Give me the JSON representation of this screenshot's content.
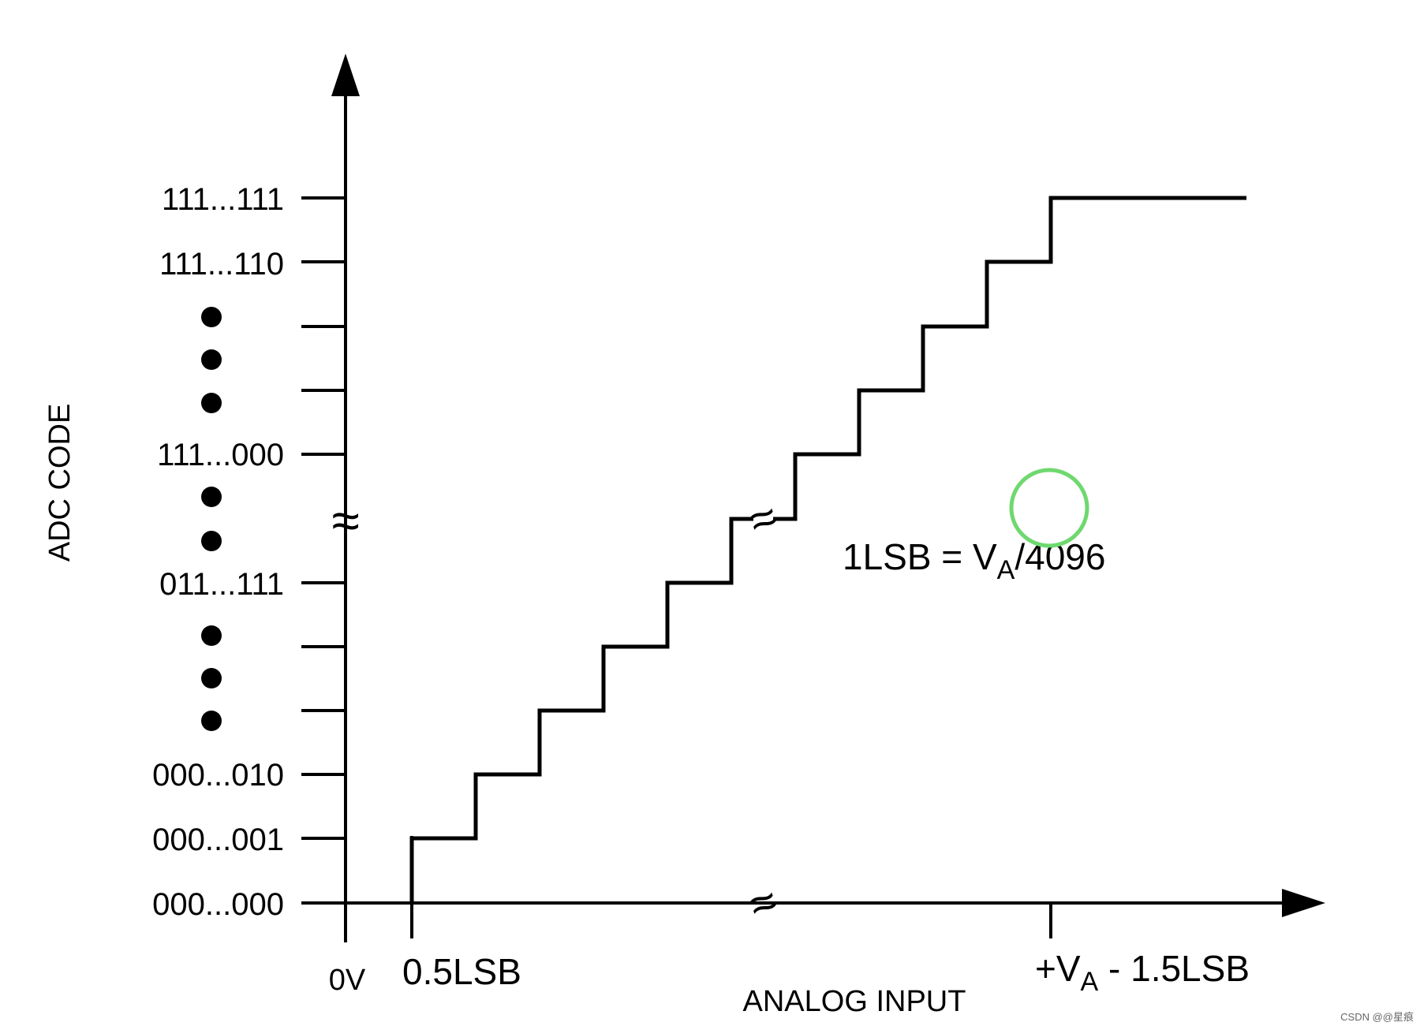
{
  "y_axis": {
    "title": "ADC CODE",
    "codes": [
      "000...000",
      "000...001",
      "000...010",
      "011...111",
      "111...000",
      "111...110",
      "111...111"
    ]
  },
  "x_axis": {
    "title": "ANALOG INPUT",
    "origin_label": "0V",
    "first_transition_label": "0.5LSB",
    "last_transition_label": {
      "prefix": "+V",
      "subscript": "A",
      "suffix": " - 1.5LSB"
    }
  },
  "formula": {
    "prefix": "1LSB = V",
    "subscript": "A",
    "suffix": "/4096"
  },
  "break_symbol": "≈",
  "watermark": "CSDN @@星痕",
  "colors": {
    "line": "#000000",
    "marker_circle": "#6fd86f",
    "background": "#ffffff"
  }
}
